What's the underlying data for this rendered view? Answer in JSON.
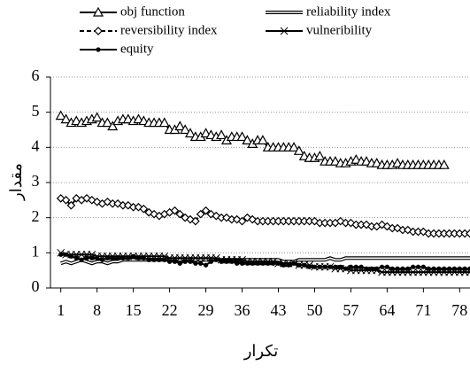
{
  "chart_data": {
    "type": "line",
    "x_label": "تكرار",
    "y_label": "مقدار",
    "x": [
      1,
      2,
      3,
      4,
      5,
      6,
      7,
      8,
      9,
      10,
      11,
      12,
      13,
      14,
      15,
      16,
      17,
      18,
      19,
      20,
      21,
      22,
      23,
      24,
      25,
      26,
      27,
      28,
      29,
      30,
      31,
      32,
      33,
      34,
      35,
      36,
      37,
      38,
      39,
      40,
      41,
      42,
      43,
      44,
      45,
      46,
      47,
      48,
      49,
      50,
      51,
      52,
      53,
      54,
      55,
      56,
      57,
      58,
      59,
      60,
      61,
      62,
      63,
      64,
      65,
      66,
      67,
      68,
      69,
      70,
      71,
      72,
      73,
      74,
      75,
      76,
      77,
      78,
      79,
      80
    ],
    "xlim": [
      -1,
      80
    ],
    "xticks": [
      1,
      8,
      15,
      22,
      29,
      36,
      43,
      50,
      57,
      64,
      71,
      78
    ],
    "ylim": [
      0,
      6
    ],
    "yticks": [
      0,
      1,
      2,
      3,
      4,
      5,
      6
    ],
    "grid": true,
    "series": [
      {
        "name": "obj function",
        "color": "#000000",
        "marker": "triangle",
        "style": "solid",
        "values": [
          4.9,
          4.8,
          4.7,
          4.75,
          4.7,
          4.75,
          4.8,
          4.85,
          4.7,
          4.7,
          4.6,
          4.75,
          4.8,
          4.8,
          4.75,
          4.8,
          4.75,
          4.7,
          4.7,
          4.7,
          4.7,
          4.5,
          4.5,
          4.6,
          4.5,
          4.4,
          4.3,
          4.3,
          4.4,
          4.35,
          4.3,
          4.35,
          4.2,
          4.3,
          4.3,
          4.3,
          4.2,
          4.1,
          4.2,
          4.2,
          4.0,
          4.0,
          4.0,
          4.0,
          4.0,
          4.0,
          3.9,
          3.75,
          3.7,
          3.7,
          3.75,
          3.6,
          3.6,
          3.6,
          3.55,
          3.55,
          3.6,
          3.65,
          3.6,
          3.6,
          3.55,
          3.55,
          3.5,
          3.5,
          3.5,
          3.55,
          3.5,
          3.5,
          3.5,
          3.5,
          3.5,
          3.5,
          3.5,
          3.5,
          3.5,
          null,
          null,
          null,
          null,
          null
        ]
      },
      {
        "name": "reliability index",
        "color": "#000000",
        "marker": "none",
        "style": "double",
        "values": [
          0.7,
          0.75,
          0.7,
          0.75,
          0.8,
          0.75,
          0.7,
          0.75,
          0.75,
          0.7,
          0.75,
          0.75,
          0.8,
          0.8,
          0.8,
          0.8,
          0.8,
          0.8,
          0.8,
          0.8,
          0.8,
          0.8,
          0.8,
          0.8,
          0.8,
          0.8,
          0.8,
          0.8,
          0.8,
          0.8,
          0.8,
          0.8,
          0.8,
          0.8,
          0.8,
          0.8,
          0.8,
          0.8,
          0.8,
          0.8,
          0.8,
          0.8,
          0.8,
          0.75,
          0.75,
          0.75,
          0.8,
          0.8,
          0.8,
          0.8,
          0.8,
          0.8,
          0.85,
          0.8,
          0.8,
          0.85,
          0.85,
          0.85,
          0.85,
          0.85,
          0.85,
          0.85,
          0.85,
          0.85,
          0.85,
          0.85,
          0.85,
          0.85,
          0.85,
          0.85,
          0.85,
          0.85,
          0.85,
          0.85,
          0.85,
          0.85,
          0.85,
          0.85,
          0.85,
          0.85
        ]
      },
      {
        "name": "reversibility index",
        "color": "#000000",
        "marker": "diamond",
        "style": "dashed",
        "values": [
          2.55,
          2.5,
          2.35,
          2.55,
          2.5,
          2.55,
          2.5,
          2.45,
          2.4,
          2.45,
          2.4,
          2.4,
          2.35,
          2.35,
          2.3,
          2.3,
          2.25,
          2.15,
          2.1,
          2.05,
          2.1,
          2.15,
          2.2,
          2.1,
          2.0,
          1.95,
          1.9,
          2.1,
          2.2,
          2.1,
          2.05,
          2.0,
          2.0,
          1.95,
          1.95,
          1.9,
          2.0,
          1.95,
          1.9,
          1.9,
          1.9,
          1.9,
          1.9,
          1.9,
          1.9,
          1.9,
          1.9,
          1.9,
          1.9,
          1.9,
          1.85,
          1.85,
          1.85,
          1.85,
          1.9,
          1.85,
          1.85,
          1.8,
          1.8,
          1.8,
          1.75,
          1.75,
          1.8,
          1.75,
          1.7,
          1.7,
          1.65,
          1.65,
          1.6,
          1.6,
          1.6,
          1.55,
          1.55,
          1.55,
          1.55,
          1.55,
          1.55,
          1.55,
          1.55,
          1.55
        ]
      },
      {
        "name": "vulneribility",
        "color": "#000000",
        "marker": "x",
        "style": "solid",
        "values": [
          1.0,
          0.95,
          0.95,
          0.95,
          0.95,
          0.95,
          0.95,
          0.9,
          0.9,
          0.9,
          0.9,
          0.9,
          0.9,
          0.9,
          0.9,
          0.9,
          0.9,
          0.9,
          0.9,
          0.9,
          0.9,
          0.85,
          0.85,
          0.85,
          0.85,
          0.85,
          0.85,
          0.85,
          0.85,
          0.85,
          0.85,
          0.8,
          0.8,
          0.8,
          0.8,
          0.8,
          0.75,
          0.75,
          0.75,
          0.75,
          0.75,
          0.75,
          0.7,
          0.7,
          0.7,
          0.7,
          0.65,
          0.65,
          0.65,
          0.6,
          0.6,
          0.6,
          0.6,
          0.55,
          0.55,
          0.55,
          0.5,
          0.5,
          0.5,
          0.5,
          0.5,
          0.5,
          0.45,
          0.45,
          0.45,
          0.45,
          0.45,
          0.45,
          0.45,
          0.45,
          0.45,
          0.45,
          0.45,
          0.45,
          0.45,
          0.45,
          0.45,
          0.45,
          0.45,
          0.45
        ]
      },
      {
        "name": "equity",
        "color": "#000000",
        "marker": "dot",
        "style": "solid",
        "values": [
          0.95,
          0.95,
          0.9,
          0.85,
          0.8,
          0.85,
          0.85,
          0.85,
          0.8,
          0.85,
          0.85,
          0.85,
          0.85,
          0.85,
          0.9,
          0.85,
          0.85,
          0.8,
          0.8,
          0.8,
          0.8,
          0.75,
          0.75,
          0.7,
          0.75,
          0.75,
          0.7,
          0.7,
          0.65,
          0.75,
          0.8,
          0.75,
          0.75,
          0.75,
          0.7,
          0.7,
          0.7,
          0.7,
          0.7,
          0.7,
          0.7,
          0.7,
          0.7,
          0.65,
          0.65,
          0.7,
          0.65,
          0.65,
          0.6,
          0.6,
          0.6,
          0.6,
          0.6,
          0.6,
          0.6,
          0.55,
          0.6,
          0.6,
          0.6,
          0.55,
          0.55,
          0.55,
          0.6,
          0.6,
          0.55,
          0.55,
          0.55,
          0.55,
          0.6,
          0.6,
          0.6,
          0.55,
          0.55,
          0.55,
          0.55,
          0.55,
          0.55,
          0.55,
          0.55,
          0.55
        ]
      }
    ]
  }
}
